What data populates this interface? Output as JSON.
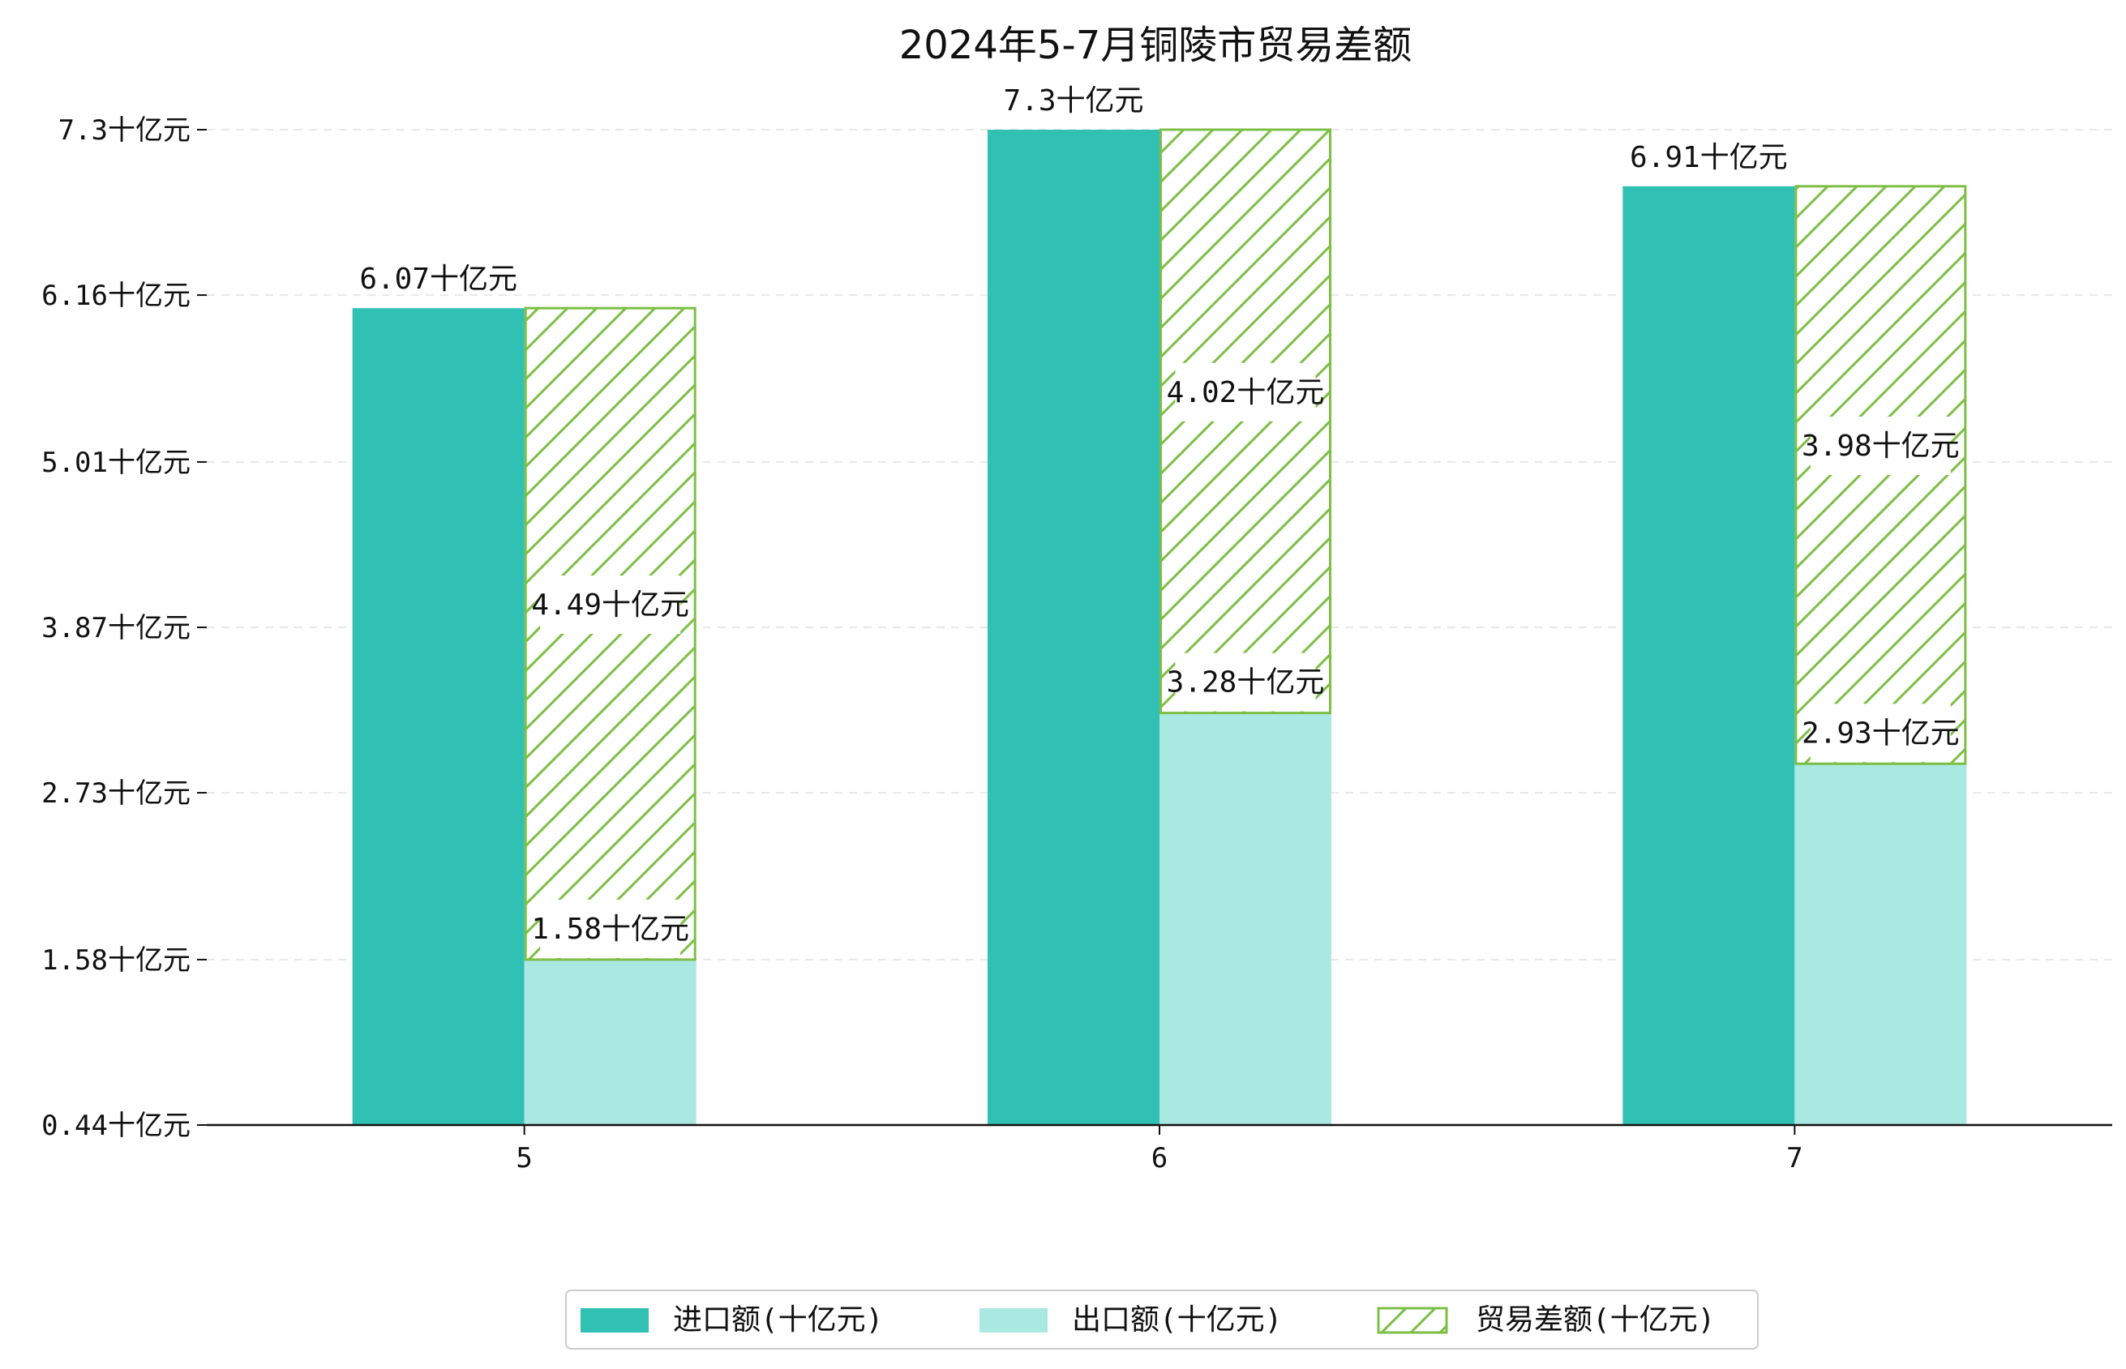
{
  "chart_data": {
    "type": "bar",
    "title": "2024年5-7月铜陵市贸易差额",
    "xlabel": "",
    "ylabel": "",
    "categories": [
      "5",
      "6",
      "7"
    ],
    "unit_suffix": "十亿元",
    "ylim": [
      0.44,
      7.3
    ],
    "yticks": [
      "0.44十亿元",
      "1.58十亿元",
      "2.73十亿元",
      "3.87十亿元",
      "5.01十亿元",
      "6.16十亿元",
      "7.3十亿元"
    ],
    "ytick_values": [
      0.44,
      1.58,
      2.73,
      3.87,
      5.01,
      6.16,
      7.3
    ],
    "grid": "y-dashed",
    "legend_position": "bottom-center",
    "series": [
      {
        "name": "进口额(十亿元)",
        "values": [
          6.07,
          7.3,
          6.91
        ],
        "labels": [
          "6.07十亿元",
          "7.3十亿元",
          "6.91十亿元"
        ],
        "color": "#30c0b4"
      },
      {
        "name": "出口额(十亿元)",
        "values": [
          1.58,
          3.28,
          2.93
        ],
        "labels": [
          "1.58十亿元",
          "3.28十亿元",
          "2.93十亿元"
        ],
        "color": "#aae8e2"
      },
      {
        "name": "贸易差额(十亿元)",
        "values": [
          4.49,
          4.02,
          3.98
        ],
        "labels": [
          "4.49十亿元",
          "4.02十亿元",
          "3.98十亿元"
        ],
        "color": "#7cbf44",
        "style": "hatched",
        "stacked_on": "出口额(十亿元)"
      }
    ]
  }
}
